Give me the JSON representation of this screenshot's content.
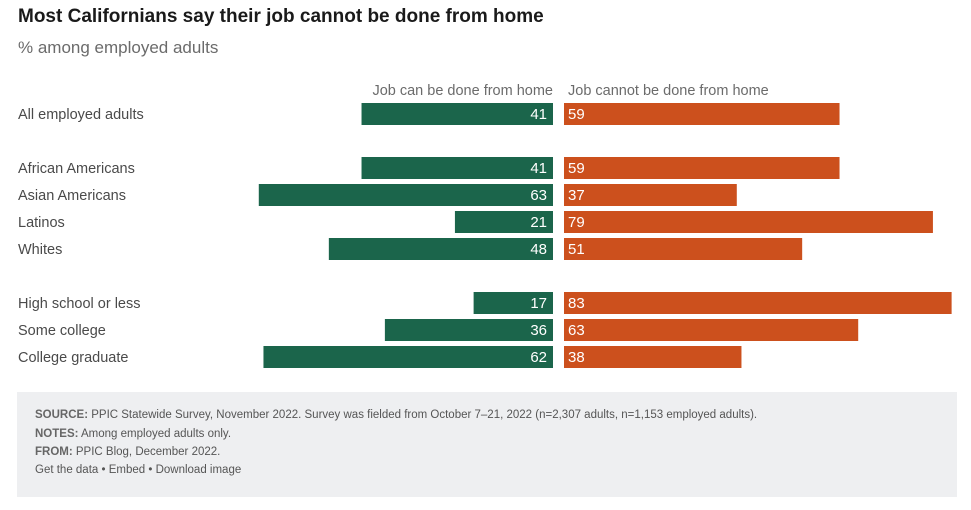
{
  "chart_data": {
    "type": "bar",
    "orientation": "horizontal-diverging-stacked",
    "title": "Most Californians say their job cannot be done from home",
    "subtitle": "% among employed adults",
    "xlabel": "",
    "ylabel": "",
    "xlim": [
      0,
      100
    ],
    "grid": false,
    "legend_position": "top",
    "groups": [
      {
        "categories": [
          "All employed adults"
        ]
      },
      {
        "categories": [
          "African Americans",
          "Asian Americans",
          "Latinos",
          "Whites"
        ]
      },
      {
        "categories": [
          "High school or less",
          "Some college",
          "College graduate"
        ]
      }
    ],
    "categories": [
      "All employed adults",
      "African Americans",
      "Asian Americans",
      "Latinos",
      "Whites",
      "High school or less",
      "Some college",
      "College graduate"
    ],
    "series": [
      {
        "name": "Job can be done from home",
        "color": "#1b654b",
        "values": [
          41,
          41,
          63,
          21,
          48,
          17,
          36,
          62
        ]
      },
      {
        "name": "Job cannot be done from home",
        "color": "#cc501d",
        "values": [
          59,
          59,
          37,
          79,
          51,
          83,
          63,
          38
        ]
      }
    ]
  },
  "footer": {
    "source_label": "SOURCE:",
    "source_text": " PPIC Statewide Survey, November 2022. Survey was fielded from October 7–21, 2022 (n=2,307 adults, n=1,153 employed adults).",
    "notes_label": "NOTES:",
    "notes_text": " Among employed adults only.",
    "from_label": "FROM:",
    "from_text": " PPIC Blog, December 2022.",
    "links": [
      "Get the data",
      "Embed",
      "Download image"
    ],
    "separator": " • "
  }
}
